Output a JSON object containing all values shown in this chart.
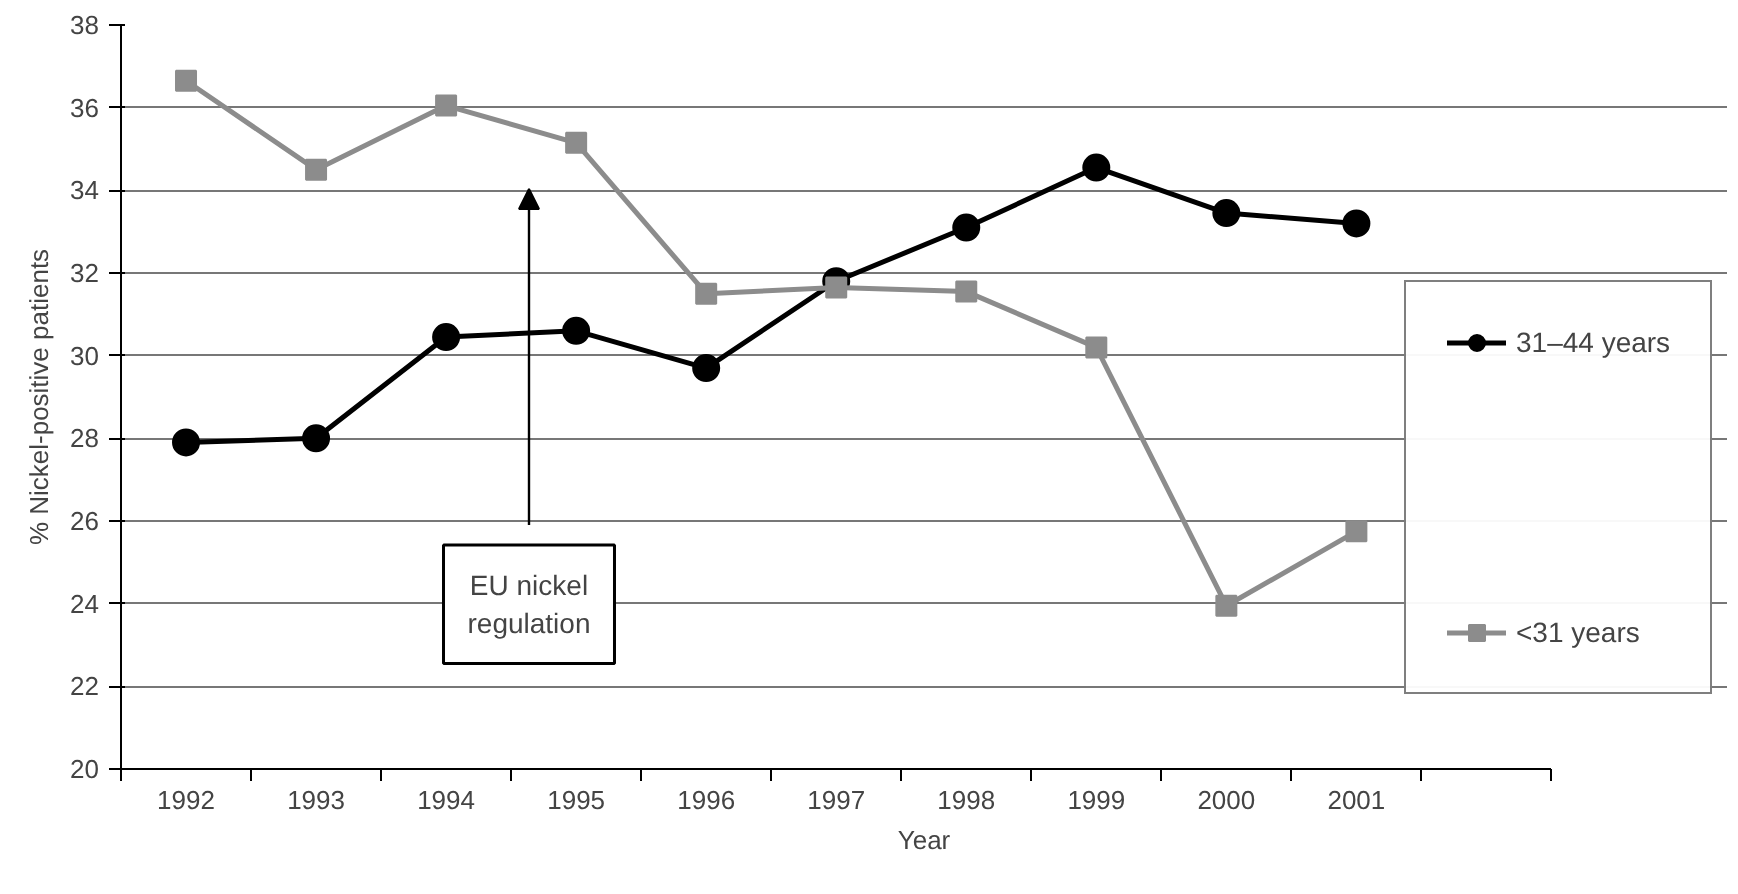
{
  "chart_data": {
    "type": "line",
    "xlabel": "Year",
    "ylabel": "% Nickel-positive patients",
    "categories": [
      "1992",
      "1993",
      "1994",
      "1995",
      "1996",
      "1997",
      "1998",
      "1999",
      "2000",
      "2001",
      null
    ],
    "series": [
      {
        "name": "31–44 years",
        "color": "#000000",
        "marker": "circle",
        "values": [
          27.9,
          28.0,
          30.45,
          30.6,
          29.7,
          31.8,
          33.1,
          34.55,
          33.45,
          33.2,
          null
        ]
      },
      {
        "name": "<31 years",
        "color": "#8c8c8c",
        "marker": "square",
        "values": [
          36.65,
          34.5,
          36.05,
          35.15,
          31.5,
          31.65,
          31.55,
          30.2,
          23.95,
          25.75,
          null
        ]
      }
    ],
    "ylim": [
      20,
      38
    ],
    "yticks": [
      20,
      22,
      24,
      26,
      28,
      30,
      32,
      34,
      36,
      38
    ],
    "grid": "y",
    "legend": "right",
    "annotations": [
      "EU nickel\nregulation"
    ]
  }
}
